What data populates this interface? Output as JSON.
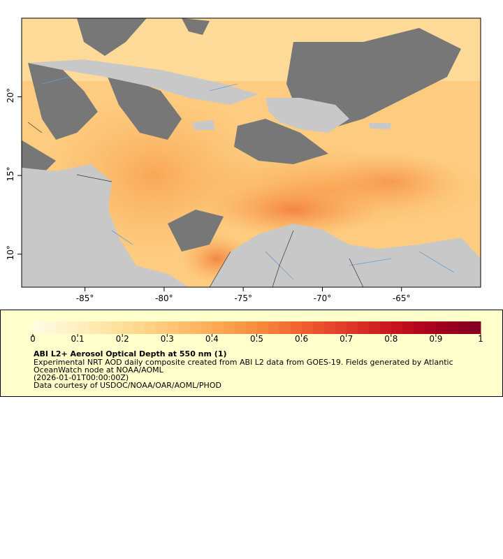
{
  "map": {
    "xlim": [
      -89,
      -60
    ],
    "ylim": [
      7.9,
      25
    ],
    "xticks": [
      {
        "value": -85,
        "label": "-85°"
      },
      {
        "value": -80,
        "label": "-80°"
      },
      {
        "value": -75,
        "label": "-75°"
      },
      {
        "value": -70,
        "label": "-70°"
      },
      {
        "value": -65,
        "label": "-65°"
      }
    ],
    "yticks": [
      {
        "value": 10,
        "label": "10°"
      },
      {
        "value": 15,
        "label": "15°"
      },
      {
        "value": 20,
        "label": "20°"
      }
    ]
  },
  "colorbar": {
    "range": [
      0,
      1
    ],
    "ticks": [
      0,
      0.1,
      0.2,
      0.3,
      0.4,
      0.5,
      0.6,
      0.7,
      0.8,
      0.9,
      1
    ],
    "colors": [
      "#fffbe6",
      "#fef0c0",
      "#fedf98",
      "#fec878",
      "#fcac58",
      "#f98c40",
      "#f06030",
      "#e03a28",
      "#c8141e",
      "#a4001e",
      "#800020"
    ]
  },
  "legend": {
    "title": "ABI L2+ Aerosol Optical Depth at 550 nm (1)",
    "lines": [
      "Experimental NRT AOD daily composite created from ABI L2 data from GOES-19. Fields generated by Atlantic",
      "OceanWatch node at NOAA/AOML",
      "(2026-01-01T00:00:00Z)",
      "Data courtesy of USDOC/NOAA/OAR/AOML/PHOD"
    ]
  }
}
